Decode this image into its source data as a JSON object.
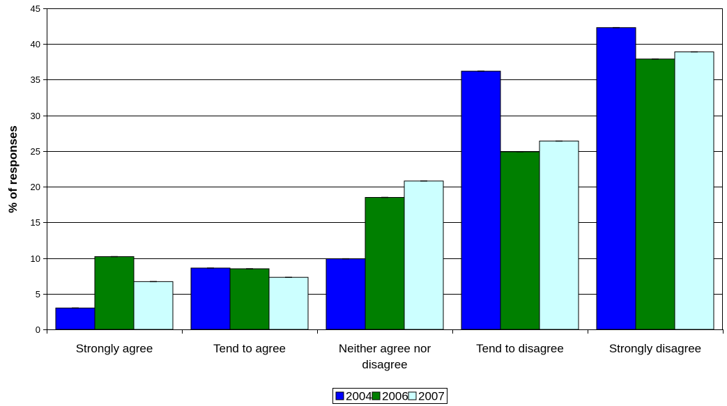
{
  "chart_data": {
    "type": "bar",
    "title": "",
    "xlabel": "",
    "ylabel": "% of responses",
    "ylim": [
      0,
      45
    ],
    "yticks": [
      0,
      5,
      10,
      15,
      20,
      25,
      30,
      35,
      40,
      45
    ],
    "grid": true,
    "legend_position": "bottom",
    "categories": [
      [
        "Strongly agree"
      ],
      [
        "Tend to agree"
      ],
      [
        "Neither agree nor",
        "disagree"
      ],
      [
        "Tend to disagree"
      ],
      [
        "Strongly disagree"
      ]
    ],
    "series": [
      {
        "name": "2004",
        "color": "#0000ff",
        "values": [
          3.0,
          8.6,
          9.9,
          36.2,
          42.3
        ]
      },
      {
        "name": "2006",
        "color": "#007f00",
        "values": [
          10.2,
          8.5,
          18.5,
          24.9,
          37.9
        ]
      },
      {
        "name": "2007",
        "color": "#ccffff",
        "values": [
          6.7,
          7.3,
          20.8,
          26.4,
          38.9
        ]
      }
    ]
  }
}
